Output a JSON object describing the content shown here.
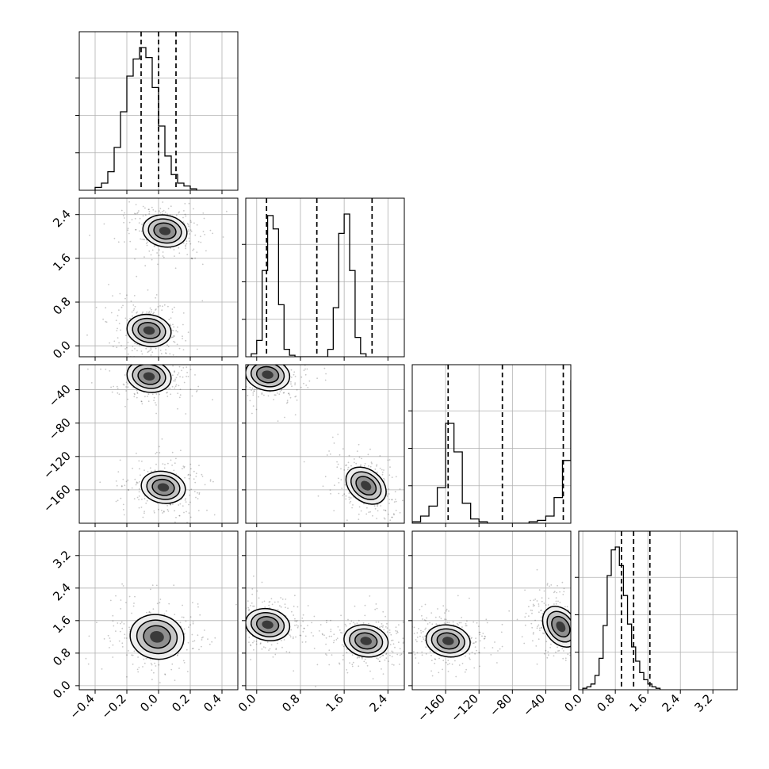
{
  "chart_data": {
    "type": "corner",
    "parameters": [
      {
        "range": [
          -0.5,
          0.5
        ],
        "ticks": [
          -0.4,
          -0.2,
          0.0,
          0.2,
          0.4
        ],
        "tick_labels": [
          "−0.4",
          "−0.2",
          "0.0",
          "0.2",
          "0.4"
        ],
        "quantiles": [
          -0.11,
          0.0,
          0.11
        ]
      },
      {
        "range": [
          -0.2,
          2.7
        ],
        "ticks": [
          0.0,
          0.8,
          1.6,
          2.4
        ],
        "tick_labels": [
          "0.0",
          "0.8",
          "1.6",
          "2.4"
        ],
        "quantiles": [
          0.18,
          1.1,
          2.11
        ]
      },
      {
        "range": [
          -200,
          -10
        ],
        "ticks": [
          -160,
          -120,
          -80,
          -40
        ],
        "tick_labels": [
          "−160",
          "−120",
          "−80",
          "−40"
        ],
        "quantiles": [
          -157,
          -92,
          -19
        ]
      },
      {
        "range": [
          -0.1,
          3.8
        ],
        "ticks": [
          0.0,
          0.8,
          1.6,
          2.4,
          3.2
        ],
        "tick_labels": [
          "0.0",
          "0.8",
          "1.6",
          "2.4",
          "3.2"
        ],
        "quantiles": [
          0.95,
          1.25,
          1.65
        ]
      }
    ],
    "histograms": [
      {
        "bin_start": -0.4,
        "bin_width": 0.04,
        "counts": [
          0.02,
          0.05,
          0.13,
          0.3,
          0.55,
          0.8,
          0.92,
          1.0,
          0.93,
          0.72,
          0.45,
          0.24,
          0.11,
          0.05,
          0.03,
          0.01
        ]
      },
      {
        "bin_start": -0.1,
        "bin_width": 0.1,
        "counts": [
          0.02,
          0.11,
          0.58,
          0.95,
          0.86,
          0.35,
          0.05,
          0.01,
          0.0,
          0.0,
          0.0,
          0.0,
          0.0,
          0.0,
          0.05,
          0.33,
          0.83,
          0.96,
          0.58,
          0.13,
          0.02
        ]
      },
      {
        "bin_start": -200,
        "bin_width": 10,
        "counts": [
          0.01,
          0.05,
          0.12,
          0.25,
          0.7,
          0.5,
          0.14,
          0.03,
          0.01,
          0.0,
          0.0,
          0.0,
          0.0,
          0.0,
          0.01,
          0.02,
          0.05,
          0.18,
          0.44,
          1.0,
          0.43
        ]
      },
      {
        "bin_start": 0.0,
        "bin_width": 0.1,
        "counts": [
          0.01,
          0.02,
          0.04,
          0.1,
          0.22,
          0.45,
          0.8,
          0.98,
          1.0,
          0.87,
          0.66,
          0.46,
          0.3,
          0.2,
          0.12,
          0.07,
          0.04,
          0.02,
          0.01
        ]
      }
    ],
    "modes_2d": [
      {
        "row": 1,
        "col": 0,
        "centers": [
          [
            0.04,
            2.1
          ],
          [
            -0.06,
            0.28
          ]
        ]
      },
      {
        "row": 2,
        "col": 0,
        "centers": [
          [
            -0.06,
            -24
          ],
          [
            0.03,
            -157
          ]
        ]
      },
      {
        "row": 2,
        "col": 1,
        "centers": [
          [
            0.2,
            -22
          ],
          [
            2.0,
            -155
          ]
        ]
      },
      {
        "row": 3,
        "col": 0,
        "centers": [
          [
            -0.01,
            1.2
          ]
        ]
      },
      {
        "row": 3,
        "col": 1,
        "centers": [
          [
            0.2,
            1.5
          ],
          [
            2.0,
            1.1
          ]
        ]
      },
      {
        "row": 3,
        "col": 2,
        "centers": [
          [
            -157,
            1.1
          ],
          [
            -22,
            1.45
          ]
        ]
      }
    ],
    "grid": true
  }
}
